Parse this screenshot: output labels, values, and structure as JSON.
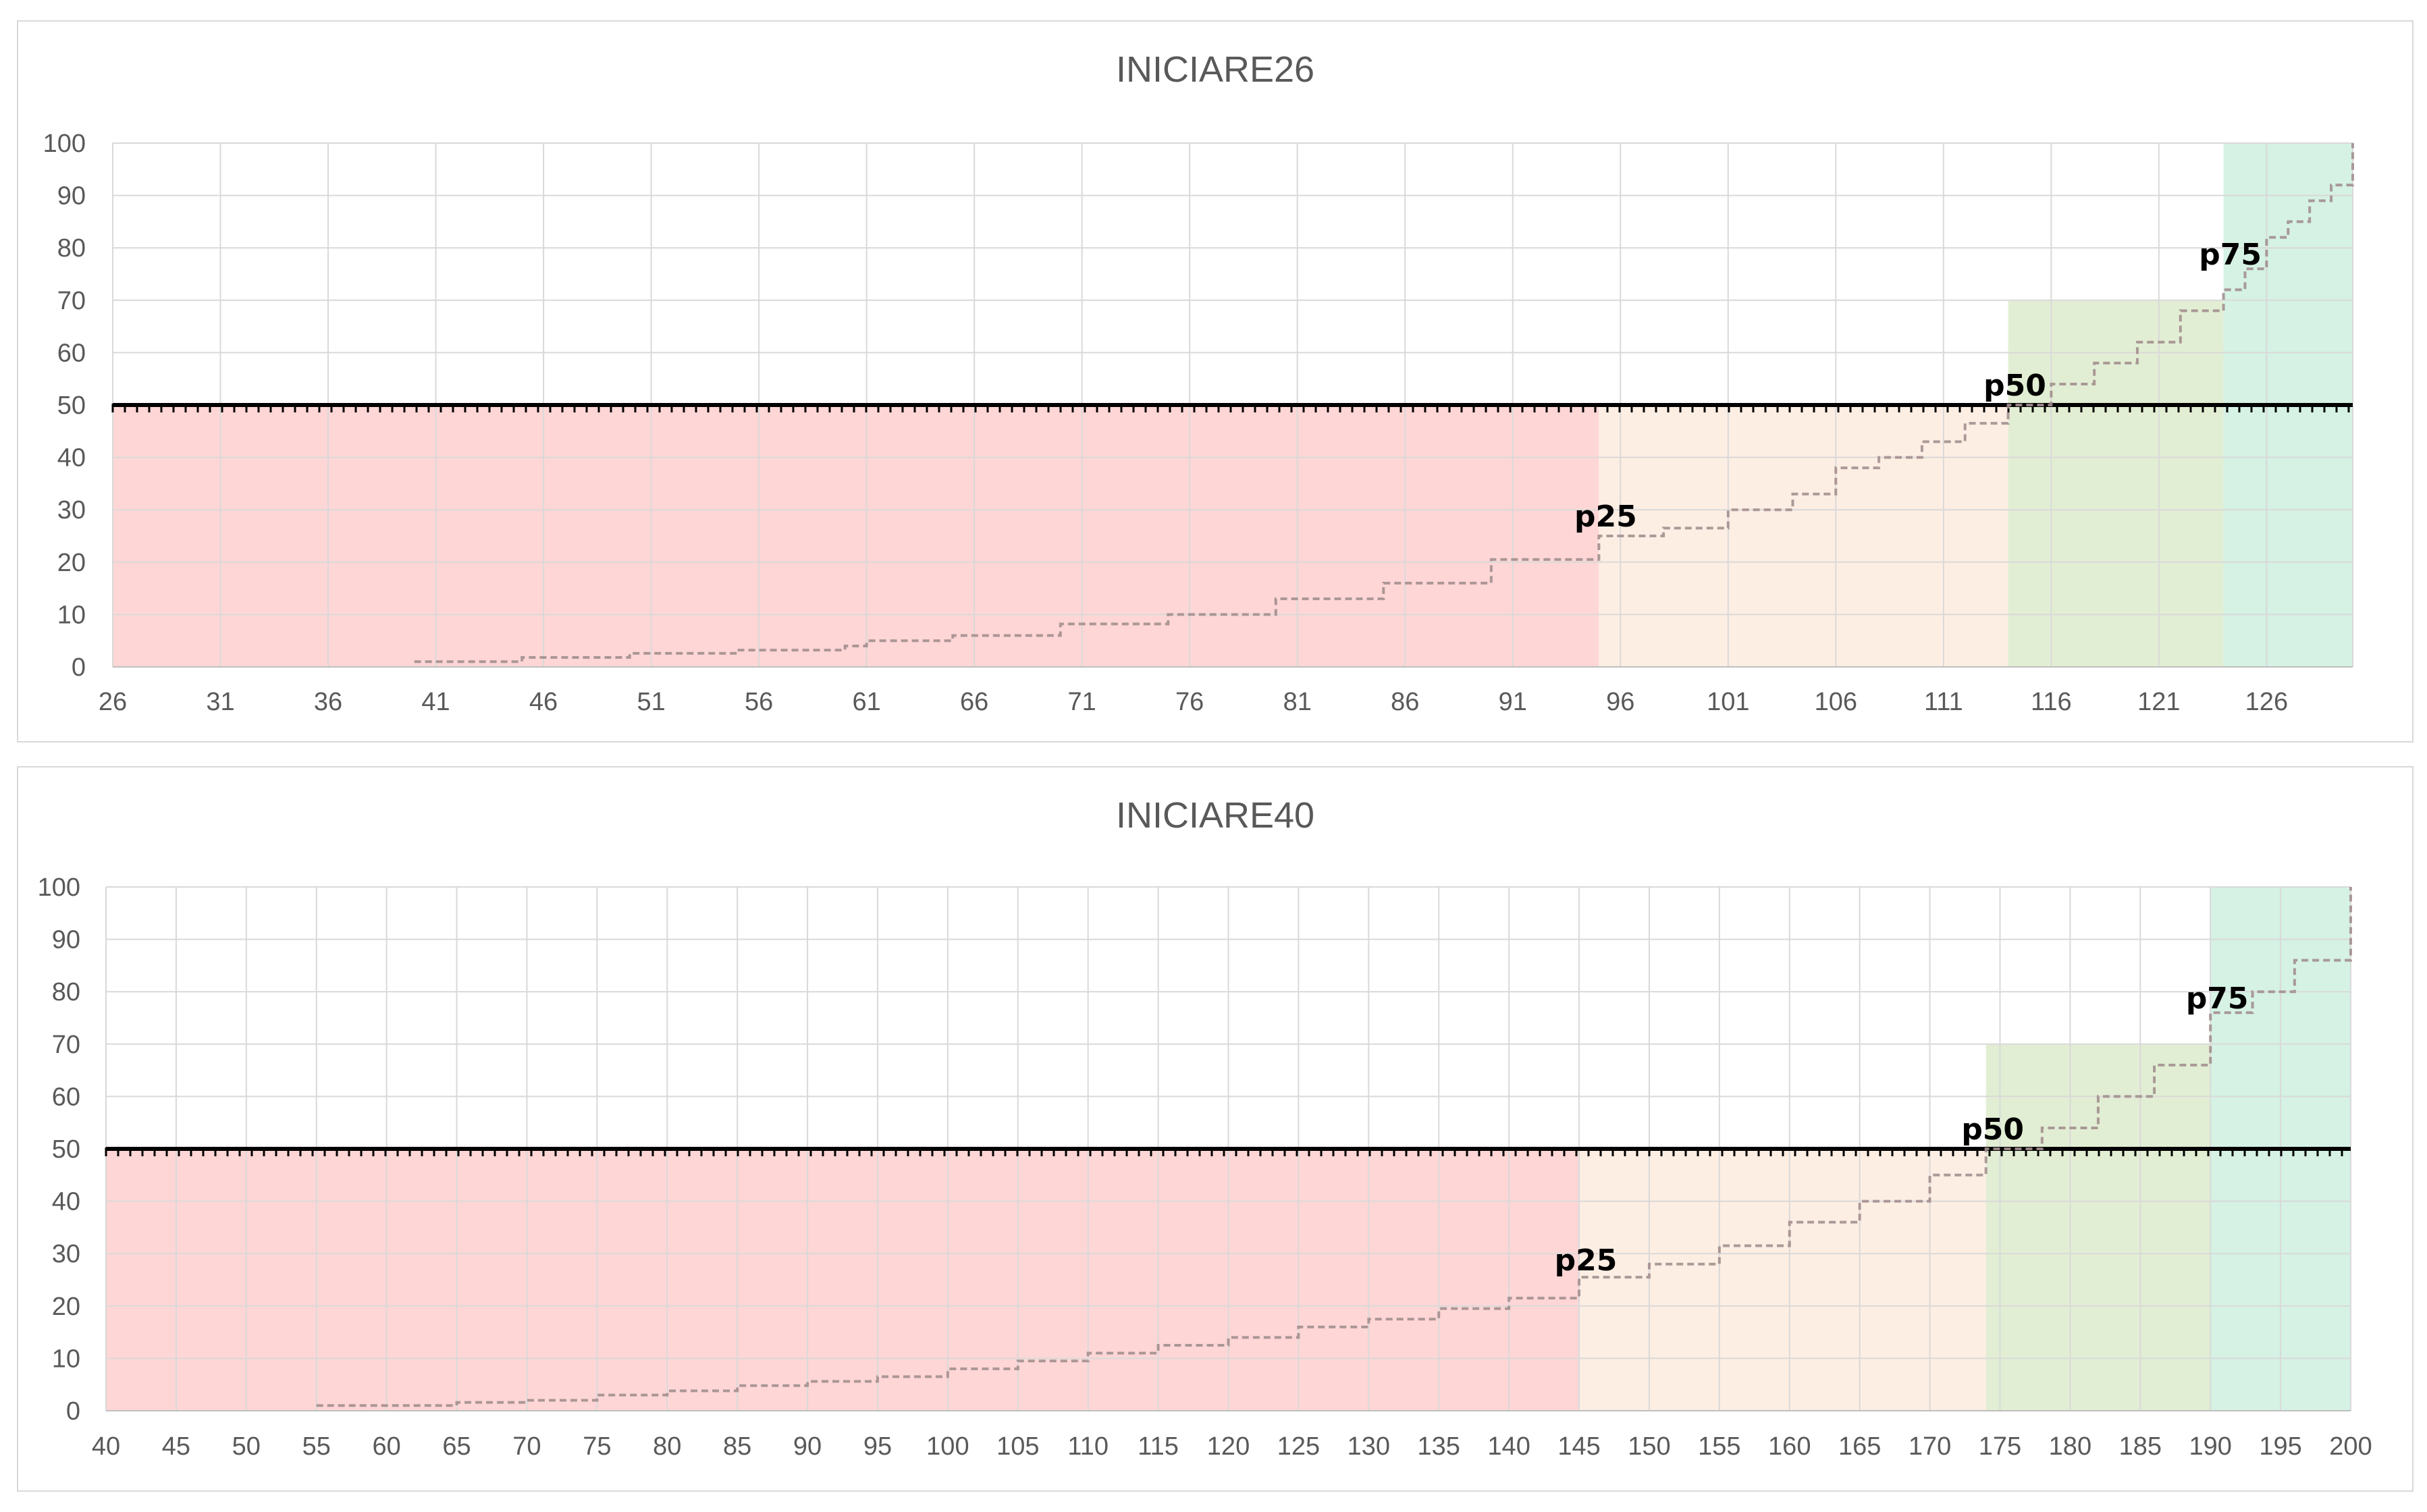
{
  "chart_data": [
    {
      "type": "line",
      "title": "INICIARE26",
      "xlim": [
        26,
        130
      ],
      "ylim": [
        0,
        100
      ],
      "x_ticks": [
        26,
        31,
        36,
        41,
        46,
        51,
        56,
        61,
        66,
        71,
        76,
        81,
        86,
        91,
        96,
        101,
        106,
        111,
        116,
        121,
        126
      ],
      "y_ticks": [
        0,
        10,
        20,
        30,
        40,
        50,
        60,
        70,
        80,
        90,
        100
      ],
      "grid": true,
      "bands": [
        {
          "x0": 26,
          "x1": 95,
          "y0": 0,
          "y1": 50,
          "color": "#ffd6d6"
        },
        {
          "x0": 95,
          "x1": 114,
          "y0": 0,
          "y1": 50,
          "color": "#fdeee3"
        },
        {
          "x0": 114,
          "x1": 124,
          "y0": 0,
          "y1": 70,
          "color": "#e2eed3"
        },
        {
          "x0": 124,
          "x1": 130,
          "y0": 0,
          "y1": 100,
          "color": "#d5f2e5"
        }
      ],
      "reference_line": {
        "y": 50
      },
      "series": [
        {
          "values": [
            [
              40,
              1
            ],
            [
              45,
              1.8
            ],
            [
              50,
              2.6
            ],
            [
              55,
              3.2
            ],
            [
              60,
              4
            ],
            [
              61,
              5
            ],
            [
              65,
              6
            ],
            [
              70,
              8.2
            ],
            [
              75,
              10
            ],
            [
              80,
              13
            ],
            [
              85,
              16
            ],
            [
              90,
              20.5
            ],
            [
              95,
              25
            ],
            [
              98,
              26.5
            ],
            [
              101,
              30
            ],
            [
              104,
              33
            ],
            [
              106,
              38
            ],
            [
              108,
              40
            ],
            [
              110,
              43
            ],
            [
              112,
              46.5
            ],
            [
              114,
              50
            ],
            [
              116,
              54
            ],
            [
              118,
              58
            ],
            [
              120,
              62
            ],
            [
              122,
              68
            ],
            [
              124,
              72
            ],
            [
              125,
              76
            ],
            [
              126,
              82
            ],
            [
              127,
              85
            ],
            [
              128,
              89
            ],
            [
              129,
              92
            ],
            [
              130,
              94
            ],
            [
              130,
              100
            ]
          ]
        }
      ],
      "annotations": [
        {
          "label": "p25",
          "x": 95,
          "y": 25
        },
        {
          "label": "p50",
          "x": 114,
          "y": 50
        },
        {
          "label": "p75",
          "x": 124,
          "y": 75
        }
      ]
    },
    {
      "type": "line",
      "title": "INICIARE40",
      "xlim": [
        40,
        200
      ],
      "ylim": [
        0,
        100
      ],
      "x_ticks": [
        40,
        45,
        50,
        55,
        60,
        65,
        70,
        75,
        80,
        85,
        90,
        95,
        100,
        105,
        110,
        115,
        120,
        125,
        130,
        135,
        140,
        145,
        150,
        155,
        160,
        165,
        170,
        175,
        180,
        185,
        190,
        195,
        200
      ],
      "y_ticks": [
        0,
        10,
        20,
        30,
        40,
        50,
        60,
        70,
        80,
        90,
        100
      ],
      "grid": true,
      "bands": [
        {
          "x0": 40,
          "x1": 145,
          "y0": 0,
          "y1": 50,
          "color": "#ffd6d6"
        },
        {
          "x0": 145,
          "x1": 174,
          "y0": 0,
          "y1": 50,
          "color": "#fdeee3"
        },
        {
          "x0": 174,
          "x1": 190,
          "y0": 0,
          "y1": 70,
          "color": "#e2eed3"
        },
        {
          "x0": 190,
          "x1": 200,
          "y0": 0,
          "y1": 100,
          "color": "#d5f2e5"
        }
      ],
      "reference_line": {
        "y": 50
      },
      "series": [
        {
          "values": [
            [
              55,
              1
            ],
            [
              65,
              1.6
            ],
            [
              70,
              2
            ],
            [
              75,
              3
            ],
            [
              80,
              3.8
            ],
            [
              85,
              4.8
            ],
            [
              90,
              5.6
            ],
            [
              95,
              6.5
            ],
            [
              100,
              8
            ],
            [
              105,
              9.5
            ],
            [
              110,
              11
            ],
            [
              115,
              12.5
            ],
            [
              120,
              14
            ],
            [
              125,
              16
            ],
            [
              130,
              17.5
            ],
            [
              135,
              19.5
            ],
            [
              140,
              21.5
            ],
            [
              145,
              25.5
            ],
            [
              150,
              28
            ],
            [
              155,
              31.5
            ],
            [
              160,
              36
            ],
            [
              165,
              40
            ],
            [
              170,
              45
            ],
            [
              174,
              50
            ],
            [
              178,
              54
            ],
            [
              182,
              60
            ],
            [
              186,
              66
            ],
            [
              190,
              76
            ],
            [
              193,
              80
            ],
            [
              196,
              86
            ],
            [
              200,
              96
            ],
            [
              200,
              100
            ]
          ]
        }
      ],
      "annotations": [
        {
          "label": "p25",
          "x": 145,
          "y": 25
        },
        {
          "label": "p50",
          "x": 174,
          "y": 50
        },
        {
          "label": "p75",
          "x": 190,
          "y": 75
        }
      ]
    }
  ]
}
